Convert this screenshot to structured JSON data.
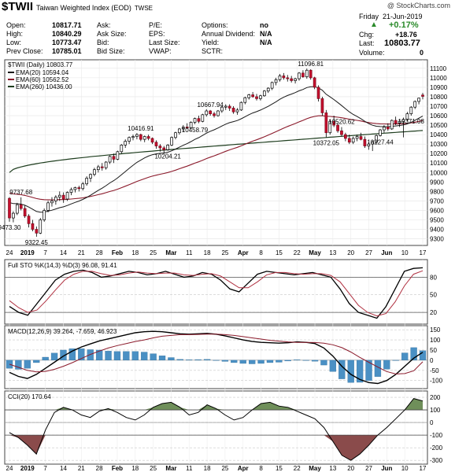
{
  "header": {
    "symbol": "$TWII",
    "name": "Taiwan Weighted Index (EOD)",
    "exchange": "TWSE",
    "copyright": "@ StockCharts.com"
  },
  "quote": {
    "open_label": "Open:",
    "open": "10817.71",
    "high_label": "High:",
    "high": "10840.29",
    "low_label": "Low:",
    "low": "10773.47",
    "prev_label": "Prev Close:",
    "prev": "10785.01",
    "ask_label": "Ask:",
    "asksize_label": "Ask Size:",
    "bid_label": "Bid:",
    "bidsize_label": "Bid Size:",
    "pe_label": "P/E:",
    "eps_label": "EPS:",
    "lastsize_label": "Last Size:",
    "vwap_label": "VWAP:",
    "options_label": "Options:",
    "options": "no",
    "annual_div_label": "Annual Dividend:",
    "annual_div": "N/A",
    "yield_label": "Yield:",
    "yield": "N/A",
    "sctr_label": "SCTR:",
    "day": "Friday",
    "date": "21-Jun-2019",
    "pct_change": "+0.17%",
    "chg_label": "Chg:",
    "chg": "+18.76",
    "last_label": "Last:",
    "last": "10803.77",
    "volume_label": "Volume:",
    "volume": "0"
  },
  "chart_data": [
    {
      "type": "candlestick",
      "title": "$TWII (Daily) 10803.77",
      "legend": [
        {
          "name": "EMA(20) 10594.04",
          "color": "#1a1a1a"
        },
        {
          "name": "EMA(60) 10562.52",
          "color": "#8b1a2b"
        },
        {
          "name": "EMA(260) 10436.00",
          "color": "#1e3d1e"
        }
      ],
      "ylim": [
        9230,
        11190
      ],
      "yticks": [
        9300,
        9400,
        9500,
        9600,
        9700,
        9800,
        9900,
        10000,
        10100,
        10200,
        10300,
        10400,
        10500,
        10600,
        10700,
        10800,
        10900,
        11000,
        11100
      ],
      "x_labels": [
        "24",
        "2019",
        "7",
        "14",
        "21",
        "28",
        "Feb",
        "18",
        "25",
        "Mar",
        "11",
        "18",
        "25",
        "Apr",
        "8",
        "15",
        "22",
        "May",
        "13",
        "20",
        "27",
        "Jun",
        "10",
        "17"
      ],
      "annotations": [
        {
          "text": "9737.68",
          "i": 3
        },
        {
          "text": "9473.30",
          "i": 0
        },
        {
          "text": "9322.45",
          "i": 7
        },
        {
          "text": "10416.91",
          "i": 34
        },
        {
          "text": "10204.21",
          "i": 41
        },
        {
          "text": "10667.94",
          "i": 52
        },
        {
          "text": "10458.79",
          "i": 48
        },
        {
          "text": "11096.81",
          "i": 78
        },
        {
          "text": "10520.62",
          "i": 86
        },
        {
          "text": "10372.05",
          "i": 82
        },
        {
          "text": "10227.44",
          "i": 96
        },
        {
          "text": "10371.08",
          "i": 104
        }
      ],
      "ohlc": [
        [
          9727,
          9740,
          9480,
          9520
        ],
        [
          9520,
          9590,
          9474,
          9570
        ],
        [
          9570,
          9680,
          9550,
          9660
        ],
        [
          9660,
          9738,
          9600,
          9620
        ],
        [
          9620,
          9650,
          9520,
          9540
        ],
        [
          9540,
          9560,
          9420,
          9460
        ],
        [
          9460,
          9500,
          9380,
          9400
        ],
        [
          9400,
          9430,
          9322,
          9360
        ],
        [
          9360,
          9520,
          9350,
          9500
        ],
        [
          9500,
          9620,
          9480,
          9600
        ],
        [
          9600,
          9700,
          9580,
          9680
        ],
        [
          9680,
          9740,
          9640,
          9700
        ],
        [
          9700,
          9760,
          9660,
          9740
        ],
        [
          9740,
          9800,
          9700,
          9760
        ],
        [
          9760,
          9790,
          9680,
          9720
        ],
        [
          9720,
          9800,
          9700,
          9790
        ],
        [
          9790,
          9840,
          9760,
          9820
        ],
        [
          9820,
          9850,
          9790,
          9840
        ],
        [
          9840,
          9860,
          9800,
          9830
        ],
        [
          9830,
          9900,
          9810,
          9880
        ],
        [
          9880,
          9960,
          9860,
          9940
        ],
        [
          9940,
          9990,
          9900,
          9980
        ],
        [
          9980,
          10050,
          9960,
          10030
        ],
        [
          10030,
          10080,
          10000,
          10060
        ],
        [
          10060,
          10100,
          10020,
          10050
        ],
        [
          10050,
          10120,
          10030,
          10110
        ],
        [
          10110,
          10180,
          10090,
          10170
        ],
        [
          10170,
          10200,
          10100,
          10140
        ],
        [
          10140,
          10230,
          10130,
          10220
        ],
        [
          10220,
          10300,
          10200,
          10290
        ],
        [
          10290,
          10350,
          10260,
          10330
        ],
        [
          10330,
          10380,
          10300,
          10370
        ],
        [
          10370,
          10400,
          10340,
          10380
        ],
        [
          10380,
          10417,
          10350,
          10400
        ],
        [
          10400,
          10410,
          10330,
          10350
        ],
        [
          10350,
          10390,
          10320,
          10380
        ],
        [
          10380,
          10400,
          10340,
          10360
        ],
        [
          10360,
          10370,
          10300,
          10320
        ],
        [
          10320,
          10340,
          10250,
          10280
        ],
        [
          10280,
          10300,
          10220,
          10260
        ],
        [
          10260,
          10280,
          10204,
          10240
        ],
        [
          10240,
          10300,
          10230,
          10290
        ],
        [
          10290,
          10380,
          10280,
          10370
        ],
        [
          10370,
          10430,
          10350,
          10420
        ],
        [
          10420,
          10470,
          10400,
          10460
        ],
        [
          10460,
          10500,
          10430,
          10480
        ],
        [
          10480,
          10520,
          10459,
          10470
        ],
        [
          10470,
          10540,
          10460,
          10530
        ],
        [
          10530,
          10580,
          10510,
          10570
        ],
        [
          10570,
          10600,
          10520,
          10540
        ],
        [
          10540,
          10620,
          10530,
          10610
        ],
        [
          10610,
          10668,
          10590,
          10650
        ],
        [
          10650,
          10660,
          10600,
          10620
        ],
        [
          10620,
          10640,
          10580,
          10600
        ],
        [
          10600,
          10660,
          10590,
          10650
        ],
        [
          10650,
          10700,
          10630,
          10690
        ],
        [
          10690,
          10720,
          10660,
          10700
        ],
        [
          10700,
          10720,
          10650,
          10680
        ],
        [
          10680,
          10700,
          10620,
          10640
        ],
        [
          10640,
          10680,
          10610,
          10660
        ],
        [
          10660,
          10750,
          10650,
          10740
        ],
        [
          10740,
          10800,
          10720,
          10790
        ],
        [
          10790,
          10830,
          10770,
          10820
        ],
        [
          10820,
          10850,
          10790,
          10800
        ],
        [
          10800,
          10830,
          10760,
          10780
        ],
        [
          10780,
          10820,
          10760,
          10810
        ],
        [
          10810,
          10870,
          10800,
          10860
        ],
        [
          10860,
          10900,
          10840,
          10890
        ],
        [
          10890,
          10960,
          10870,
          10950
        ],
        [
          10950,
          11000,
          10920,
          10980
        ],
        [
          10980,
          11040,
          10960,
          11020
        ],
        [
          11020,
          11050,
          10980,
          11000
        ],
        [
          11000,
          11030,
          10960,
          10990
        ],
        [
          10990,
          11020,
          10950,
          10970
        ],
        [
          10970,
          11000,
          10940,
          10990
        ],
        [
          10990,
          11060,
          10970,
          11050
        ],
        [
          11050,
          11080,
          11000,
          11010
        ],
        [
          11010,
          11097,
          10990,
          11080
        ],
        [
          11080,
          11090,
          10980,
          11000
        ],
        [
          11000,
          11010,
          10880,
          10900
        ],
        [
          10900,
          10920,
          10750,
          10780
        ],
        [
          10780,
          10800,
          10600,
          10630
        ],
        [
          10630,
          10660,
          10372,
          10420
        ],
        [
          10420,
          10560,
          10400,
          10540
        ],
        [
          10540,
          10600,
          10480,
          10500
        ],
        [
          10500,
          10521,
          10420,
          10440
        ],
        [
          10440,
          10480,
          10380,
          10400
        ],
        [
          10400,
          10420,
          10330,
          10360
        ],
        [
          10360,
          10400,
          10300,
          10320
        ],
        [
          10320,
          10380,
          10300,
          10360
        ],
        [
          10360,
          10400,
          10330,
          10380
        ],
        [
          10380,
          10420,
          10340,
          10350
        ],
        [
          10350,
          10380,
          10260,
          10280
        ],
        [
          10280,
          10320,
          10240,
          10300
        ],
        [
          10300,
          10340,
          10227,
          10320
        ],
        [
          10320,
          10400,
          10300,
          10390
        ],
        [
          10390,
          10460,
          10380,
          10450
        ],
        [
          10450,
          10500,
          10420,
          10480
        ],
        [
          10480,
          10520,
          10440,
          10460
        ],
        [
          10460,
          10560,
          10450,
          10550
        ],
        [
          10550,
          10590,
          10500,
          10520
        ],
        [
          10520,
          10560,
          10480,
          10540
        ],
        [
          10540,
          10580,
          10371,
          10560
        ],
        [
          10560,
          10640,
          10540,
          10620
        ],
        [
          10620,
          10700,
          10600,
          10690
        ],
        [
          10690,
          10760,
          10670,
          10750
        ],
        [
          10750,
          10790,
          10720,
          10785
        ],
        [
          10818,
          10840,
          10773,
          10804
        ]
      ],
      "ema20_endpoint": 10594.04,
      "ema60_endpoint": 10562.52,
      "ema260_endpoint": 10436.0
    },
    {
      "type": "line",
      "title": "Full STO %K(14,3) %D(3) 96.08, 91.41",
      "ylim": [
        0,
        110
      ],
      "yticks": [
        20,
        50,
        80
      ],
      "series": [
        {
          "name": "%K",
          "color": "#000000",
          "values": [
            30,
            20,
            15,
            35,
            55,
            75,
            85,
            90,
            92,
            88,
            80,
            82,
            86,
            90,
            88,
            84,
            86,
            90,
            85,
            80,
            82,
            88,
            85,
            75,
            60,
            55,
            70,
            85,
            90,
            88,
            86,
            84,
            86,
            88,
            84,
            80,
            60,
            35,
            20,
            15,
            10,
            30,
            60,
            90,
            95,
            96
          ]
        },
        {
          "name": "%D",
          "color": "#b03040",
          "values": [
            40,
            28,
            20,
            24,
            40,
            58,
            75,
            85,
            90,
            90,
            86,
            83,
            84,
            87,
            89,
            87,
            86,
            87,
            87,
            84,
            83,
            85,
            86,
            82,
            72,
            62,
            62,
            72,
            84,
            88,
            88,
            86,
            85,
            86,
            86,
            83,
            72,
            52,
            32,
            20,
            14,
            18,
            38,
            65,
            85,
            91
          ]
        }
      ]
    },
    {
      "type": "line",
      "title": "MACD(12,26,9) 39.264, -7.659, 46.923",
      "ylim": [
        -140,
        170
      ],
      "yticks": [
        -100,
        -50,
        0,
        50,
        100,
        150
      ],
      "series": [
        {
          "name": "MACD",
          "color": "#000000",
          "values": [
            -60,
            -80,
            -90,
            -70,
            -40,
            -10,
            20,
            45,
            65,
            80,
            95,
            105,
            115,
            125,
            135,
            140,
            142,
            140,
            135,
            130,
            128,
            130,
            132,
            128,
            120,
            110,
            100,
            92,
            88,
            86,
            84,
            86,
            90,
            88,
            82,
            60,
            20,
            -30,
            -70,
            -95,
            -110,
            -115,
            -100,
            -70,
            -30,
            10,
            39
          ]
        },
        {
          "name": "Signal",
          "color": "#8b1a2b",
          "values": [
            -20,
            -35,
            -50,
            -58,
            -55,
            -45,
            -30,
            -12,
            8,
            28,
            45,
            60,
            72,
            82,
            92,
            100,
            110,
            118,
            122,
            126,
            126,
            127,
            128,
            128,
            126,
            122,
            116,
            110,
            104,
            98,
            94,
            90,
            88,
            88,
            87,
            84,
            76,
            62,
            40,
            14,
            -10,
            -34,
            -56,
            -68,
            -66,
            -52,
            -8
          ]
        },
        {
          "name": "Histogram",
          "color": "#4a90c4",
          "values": [
            -40,
            -45,
            -40,
            -12,
            15,
            35,
            50,
            57,
            57,
            52,
            50,
            45,
            43,
            43,
            43,
            40,
            32,
            22,
            13,
            4,
            2,
            3,
            4,
            0,
            -6,
            -12,
            -16,
            -18,
            -16,
            -12,
            -10,
            -4,
            2,
            0,
            -5,
            -24,
            -56,
            -92,
            -110,
            -109,
            -100,
            -81,
            -44,
            -2,
            36,
            62,
            47
          ]
        }
      ]
    },
    {
      "type": "line",
      "title": "CCI(20) 170.64",
      "ylim": [
        -330,
        250
      ],
      "yticks": [
        -300,
        -200,
        -100,
        0,
        100,
        200
      ],
      "series": [
        {
          "name": "CCI",
          "color": "#000000",
          "values": [
            -80,
            -120,
            -180,
            -250,
            -60,
            80,
            120,
            100,
            60,
            40,
            90,
            110,
            80,
            40,
            20,
            60,
            120,
            150,
            160,
            120,
            60,
            80,
            140,
            110,
            60,
            20,
            40,
            100,
            150,
            160,
            130,
            120,
            90,
            60,
            30,
            -40,
            -150,
            -260,
            -300,
            -250,
            -180,
            -100,
            -40,
            30,
            100,
            190,
            171
          ]
        }
      ]
    }
  ]
}
